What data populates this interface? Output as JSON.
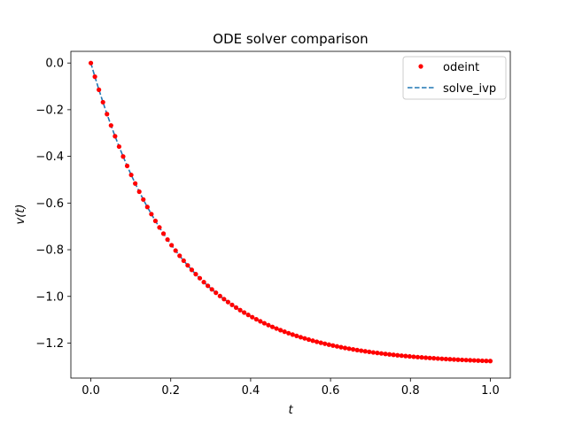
{
  "chart_data": {
    "type": "scatter",
    "title": "ODE solver comparison",
    "xlabel": "t",
    "ylabel": "v(t)",
    "xlim": [
      -0.05,
      1.05
    ],
    "ylim": [
      -1.35,
      0.05
    ],
    "xticks": [
      0.0,
      0.2,
      0.4,
      0.6,
      0.8,
      1.0
    ],
    "xtick_labels": [
      "0.0",
      "0.2",
      "0.4",
      "0.6",
      "0.8",
      "1.0"
    ],
    "yticks": [
      0.0,
      -0.2,
      -0.4,
      -0.6,
      -0.8,
      -1.0,
      -1.2
    ],
    "ytick_labels": [
      "0.0",
      "−0.2",
      "−0.4",
      "−0.6",
      "−0.8",
      "−1.0",
      "−1.2"
    ],
    "grid": false,
    "legend_position": "upper right",
    "model": {
      "v_terminal": -1.29,
      "rate": 4.6,
      "t_start": 0.0,
      "t_end": 1.0,
      "num_points": 100
    },
    "series": [
      {
        "name": "odeint",
        "style": "scatter",
        "color": "#ff0000"
      },
      {
        "name": "solve_ivp",
        "style": "dashed-line",
        "color": "#1f77b4"
      }
    ]
  }
}
